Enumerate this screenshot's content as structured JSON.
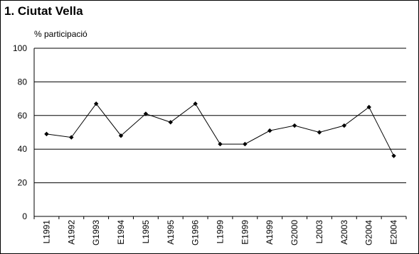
{
  "chart_data": {
    "type": "line",
    "title": "1. Ciutat Vella",
    "ylabel": "% participació",
    "xlabel": "",
    "ylim": [
      0,
      100
    ],
    "yticks": [
      0,
      20,
      40,
      60,
      80,
      100
    ],
    "grid": true,
    "legend": "none",
    "categories": [
      "L1991",
      "A1992",
      "G1993",
      "E1994",
      "L1995",
      "A1995",
      "G1996",
      "L1999",
      "E1999",
      "A1999",
      "G2000",
      "L2003",
      "A2003",
      "G2004",
      "E2004"
    ],
    "series": [
      {
        "name": "",
        "values": [
          49,
          47,
          67,
          48,
          61,
          56,
          67,
          43,
          43,
          51,
          54,
          50,
          54,
          65,
          36
        ],
        "color": "#000000"
      }
    ]
  }
}
